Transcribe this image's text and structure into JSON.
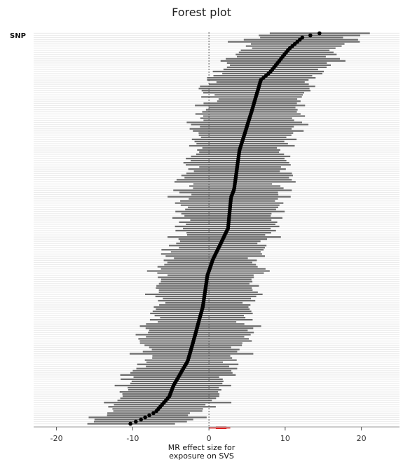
{
  "chart_data": {
    "type": "forest",
    "title": "Forest plot",
    "ylabel": "SNP",
    "xlabel_lines": [
      "MR effect size for",
      "exposure on SVS"
    ],
    "xlim": [
      -23,
      25
    ],
    "xticks": [
      -20,
      -10,
      0,
      10,
      20
    ],
    "xtick_labels": [
      "-20",
      "-10",
      "0",
      "10",
      "20"
    ],
    "reference_line": 0,
    "n_snps": 185,
    "estimate_profile": {
      "rank_fraction": [
        0.0,
        0.01,
        0.03,
        0.07,
        0.1,
        0.16,
        0.2,
        0.3,
        0.38,
        0.42,
        0.5,
        0.58,
        0.6,
        0.7,
        0.8,
        0.88,
        0.9,
        0.96,
        0.99,
        1.0
      ],
      "estimate": [
        -10.3,
        -9.0,
        -7.0,
        -5.2,
        -4.6,
        -2.8,
        -2.2,
        -0.8,
        -0.2,
        0.5,
        2.5,
        2.9,
        3.3,
        4.0,
        5.6,
        6.8,
        8.0,
        10.5,
        12.3,
        14.5
      ]
    },
    "ci_halfwidth_range": [
      4.5,
      6.5
    ],
    "summary_estimate": {
      "center": 1.6,
      "ci": [
        0.0,
        2.8
      ],
      "color": "#e02020"
    },
    "colors": {
      "ci_line": "#6b6b6b",
      "point": "#000000",
      "background_rows": "#ececec",
      "reference": "#555555"
    }
  }
}
